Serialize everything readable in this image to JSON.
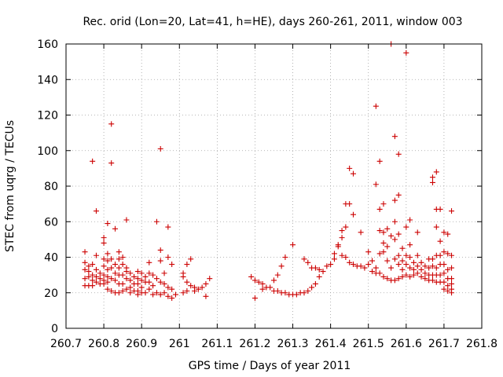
{
  "chart_data": {
    "type": "scatter",
    "title": "Rec. orid (Lon=20, Lat=41, h=HE), days 260-261, 2011, window 003",
    "xlabel": "GPS time / Days of year 2011",
    "ylabel": "STEC from uqrg / TECUs",
    "xlim": [
      260.7,
      261.8
    ],
    "ylim": [
      0,
      160
    ],
    "x_ticks": [
      260.7,
      260.8,
      260.9,
      261,
      261.1,
      261.2,
      261.3,
      261.4,
      261.5,
      261.6,
      261.7,
      261.8
    ],
    "x_tick_labels": [
      "260.7",
      "260.8",
      "260.9",
      "261",
      "261.1",
      "261.2",
      "261.3",
      "261.4",
      "261.5",
      "261.6",
      "261.7",
      "261.8"
    ],
    "y_ticks": [
      0,
      20,
      40,
      60,
      80,
      100,
      120,
      140,
      160
    ],
    "y_tick_labels": [
      "0",
      "20",
      "40",
      "60",
      "80",
      "100",
      "120",
      "140",
      "160"
    ],
    "grid": true,
    "legend": "none",
    "marker": "plus",
    "marker_color": "#cc0000",
    "points": [
      [
        260.75,
        43
      ],
      [
        260.75,
        37
      ],
      [
        260.75,
        33
      ],
      [
        260.75,
        28
      ],
      [
        260.75,
        24
      ],
      [
        260.76,
        35
      ],
      [
        260.76,
        32
      ],
      [
        260.76,
        29
      ],
      [
        260.76,
        24
      ],
      [
        260.77,
        94
      ],
      [
        260.77,
        36
      ],
      [
        260.77,
        30
      ],
      [
        260.77,
        27
      ],
      [
        260.77,
        24
      ],
      [
        260.78,
        66
      ],
      [
        260.78,
        41
      ],
      [
        260.78,
        33
      ],
      [
        260.78,
        29
      ],
      [
        260.78,
        26
      ],
      [
        260.79,
        31
      ],
      [
        260.79,
        28
      ],
      [
        260.79,
        25
      ],
      [
        260.8,
        51
      ],
      [
        260.8,
        48
      ],
      [
        260.8,
        39
      ],
      [
        260.8,
        35
      ],
      [
        260.8,
        30
      ],
      [
        260.8,
        27
      ],
      [
        260.8,
        25
      ],
      [
        260.81,
        59
      ],
      [
        260.81,
        42
      ],
      [
        260.81,
        38
      ],
      [
        260.81,
        33
      ],
      [
        260.81,
        29
      ],
      [
        260.81,
        26
      ],
      [
        260.81,
        22
      ],
      [
        260.82,
        115
      ],
      [
        260.82,
        93
      ],
      [
        260.82,
        39
      ],
      [
        260.82,
        34
      ],
      [
        260.82,
        28
      ],
      [
        260.82,
        21
      ],
      [
        260.83,
        56
      ],
      [
        260.83,
        36
      ],
      [
        260.83,
        31
      ],
      [
        260.83,
        27
      ],
      [
        260.83,
        20
      ],
      [
        260.84,
        43
      ],
      [
        260.84,
        39
      ],
      [
        260.84,
        34
      ],
      [
        260.84,
        30
      ],
      [
        260.84,
        25
      ],
      [
        260.84,
        20
      ],
      [
        260.85,
        40
      ],
      [
        260.85,
        36
      ],
      [
        260.85,
        30
      ],
      [
        260.85,
        25
      ],
      [
        260.85,
        21
      ],
      [
        260.86,
        61
      ],
      [
        260.86,
        34
      ],
      [
        260.86,
        32
      ],
      [
        260.86,
        28
      ],
      [
        260.86,
        22
      ],
      [
        260.87,
        31
      ],
      [
        260.87,
        27
      ],
      [
        260.87,
        23
      ],
      [
        260.87,
        20
      ],
      [
        260.88,
        29
      ],
      [
        260.88,
        25
      ],
      [
        260.88,
        21
      ],
      [
        260.89,
        32
      ],
      [
        260.89,
        28
      ],
      [
        260.89,
        25
      ],
      [
        260.89,
        21
      ],
      [
        260.89,
        19
      ],
      [
        260.9,
        31
      ],
      [
        260.9,
        27
      ],
      [
        260.9,
        23
      ],
      [
        260.9,
        20
      ],
      [
        260.91,
        29
      ],
      [
        260.91,
        26
      ],
      [
        260.91,
        20
      ],
      [
        260.92,
        37
      ],
      [
        260.92,
        31
      ],
      [
        260.92,
        26
      ],
      [
        260.92,
        22
      ],
      [
        260.93,
        30
      ],
      [
        260.93,
        24
      ],
      [
        260.93,
        19
      ],
      [
        260.94,
        60
      ],
      [
        260.94,
        28
      ],
      [
        260.94,
        20
      ],
      [
        260.95,
        101
      ],
      [
        260.95,
        44
      ],
      [
        260.95,
        38
      ],
      [
        260.95,
        26
      ],
      [
        260.95,
        19
      ],
      [
        260.96,
        31
      ],
      [
        260.96,
        25
      ],
      [
        260.96,
        20
      ],
      [
        260.97,
        57
      ],
      [
        260.97,
        40
      ],
      [
        260.97,
        23
      ],
      [
        260.97,
        18
      ],
      [
        260.98,
        36
      ],
      [
        260.98,
        22
      ],
      [
        260.98,
        17
      ],
      [
        260.99,
        19
      ],
      [
        261.01,
        31
      ],
      [
        261.01,
        29
      ],
      [
        261.01,
        20
      ],
      [
        261.02,
        36
      ],
      [
        261.02,
        26
      ],
      [
        261.02,
        21
      ],
      [
        261.03,
        39
      ],
      [
        261.03,
        24
      ],
      [
        261.04,
        23
      ],
      [
        261.04,
        21
      ],
      [
        261.05,
        22
      ],
      [
        261.06,
        23
      ],
      [
        261.07,
        25
      ],
      [
        261.07,
        18
      ],
      [
        261.08,
        28
      ],
      [
        261.19,
        29
      ],
      [
        261.2,
        27
      ],
      [
        261.2,
        17
      ],
      [
        261.21,
        26
      ],
      [
        261.22,
        25
      ],
      [
        261.22,
        22
      ],
      [
        261.23,
        23
      ],
      [
        261.24,
        23
      ],
      [
        261.25,
        27
      ],
      [
        261.25,
        21
      ],
      [
        261.26,
        30
      ],
      [
        261.26,
        21
      ],
      [
        261.27,
        35
      ],
      [
        261.27,
        20
      ],
      [
        261.28,
        40
      ],
      [
        261.28,
        20
      ],
      [
        261.29,
        19
      ],
      [
        261.3,
        47
      ],
      [
        261.3,
        19
      ],
      [
        261.31,
        19
      ],
      [
        261.32,
        20
      ],
      [
        261.33,
        39
      ],
      [
        261.33,
        20
      ],
      [
        261.34,
        37
      ],
      [
        261.34,
        21
      ],
      [
        261.35,
        34
      ],
      [
        261.35,
        23
      ],
      [
        261.36,
        34
      ],
      [
        261.36,
        25
      ],
      [
        261.37,
        33
      ],
      [
        261.37,
        29
      ],
      [
        261.38,
        32
      ],
      [
        261.39,
        35
      ],
      [
        261.4,
        36
      ],
      [
        261.41,
        42
      ],
      [
        261.41,
        39
      ],
      [
        261.42,
        47
      ],
      [
        261.42,
        46
      ],
      [
        261.43,
        55
      ],
      [
        261.43,
        51
      ],
      [
        261.43,
        41
      ],
      [
        261.44,
        70
      ],
      [
        261.44,
        57
      ],
      [
        261.44,
        40
      ],
      [
        261.45,
        70
      ],
      [
        261.45,
        90
      ],
      [
        261.45,
        37
      ],
      [
        261.46,
        87
      ],
      [
        261.46,
        64
      ],
      [
        261.46,
        36
      ],
      [
        261.47,
        35
      ],
      [
        261.48,
        54
      ],
      [
        261.48,
        35
      ],
      [
        261.49,
        34
      ],
      [
        261.5,
        43
      ],
      [
        261.5,
        36
      ],
      [
        261.51,
        38
      ],
      [
        261.51,
        32
      ],
      [
        261.52,
        125
      ],
      [
        261.52,
        81
      ],
      [
        261.52,
        34
      ],
      [
        261.52,
        31
      ],
      [
        261.53,
        94
      ],
      [
        261.53,
        67
      ],
      [
        261.53,
        55
      ],
      [
        261.53,
        42
      ],
      [
        261.53,
        31
      ],
      [
        261.54,
        70
      ],
      [
        261.54,
        54
      ],
      [
        261.54,
        48
      ],
      [
        261.54,
        43
      ],
      [
        261.54,
        29
      ],
      [
        261.55,
        56
      ],
      [
        261.55,
        46
      ],
      [
        261.55,
        38
      ],
      [
        261.55,
        28
      ],
      [
        261.56,
        160
      ],
      [
        261.56,
        52
      ],
      [
        261.56,
        34
      ],
      [
        261.56,
        27
      ],
      [
        261.57,
        108
      ],
      [
        261.57,
        72
      ],
      [
        261.57,
        60
      ],
      [
        261.57,
        50
      ],
      [
        261.57,
        39
      ],
      [
        261.57,
        27
      ],
      [
        261.58,
        98
      ],
      [
        261.58,
        75
      ],
      [
        261.58,
        53
      ],
      [
        261.58,
        41
      ],
      [
        261.58,
        36
      ],
      [
        261.58,
        28
      ],
      [
        261.59,
        45
      ],
      [
        261.59,
        38
      ],
      [
        261.59,
        33
      ],
      [
        261.59,
        29
      ],
      [
        261.6,
        155
      ],
      [
        261.6,
        57
      ],
      [
        261.6,
        41
      ],
      [
        261.6,
        36
      ],
      [
        261.6,
        30
      ],
      [
        261.61,
        61
      ],
      [
        261.61,
        47
      ],
      [
        261.61,
        40
      ],
      [
        261.61,
        34
      ],
      [
        261.61,
        29
      ],
      [
        261.62,
        37
      ],
      [
        261.62,
        33
      ],
      [
        261.62,
        30
      ],
      [
        261.63,
        54
      ],
      [
        261.63,
        41
      ],
      [
        261.63,
        35
      ],
      [
        261.63,
        31
      ],
      [
        261.64,
        37
      ],
      [
        261.64,
        33
      ],
      [
        261.64,
        29
      ],
      [
        261.65,
        35
      ],
      [
        261.65,
        31
      ],
      [
        261.65,
        28
      ],
      [
        261.66,
        39
      ],
      [
        261.66,
        34
      ],
      [
        261.66,
        30
      ],
      [
        261.66,
        27
      ],
      [
        261.67,
        85
      ],
      [
        261.67,
        82
      ],
      [
        261.67,
        39
      ],
      [
        261.67,
        35
      ],
      [
        261.67,
        30
      ],
      [
        261.67,
        27
      ],
      [
        261.68,
        88
      ],
      [
        261.68,
        67
      ],
      [
        261.68,
        57
      ],
      [
        261.68,
        41
      ],
      [
        261.68,
        34
      ],
      [
        261.68,
        30
      ],
      [
        261.68,
        26
      ],
      [
        261.69,
        67
      ],
      [
        261.69,
        49
      ],
      [
        261.69,
        41
      ],
      [
        261.69,
        36
      ],
      [
        261.69,
        30
      ],
      [
        261.69,
        26
      ],
      [
        261.7,
        54
      ],
      [
        261.7,
        43
      ],
      [
        261.7,
        36
      ],
      [
        261.7,
        31
      ],
      [
        261.7,
        26
      ],
      [
        261.7,
        22
      ],
      [
        261.71,
        53
      ],
      [
        261.71,
        42
      ],
      [
        261.71,
        33
      ],
      [
        261.71,
        28
      ],
      [
        261.71,
        24
      ],
      [
        261.71,
        21
      ],
      [
        261.72,
        66
      ],
      [
        261.72,
        41
      ],
      [
        261.72,
        34
      ],
      [
        261.72,
        28
      ],
      [
        261.72,
        25
      ],
      [
        261.72,
        22
      ],
      [
        261.72,
        20
      ]
    ]
  }
}
